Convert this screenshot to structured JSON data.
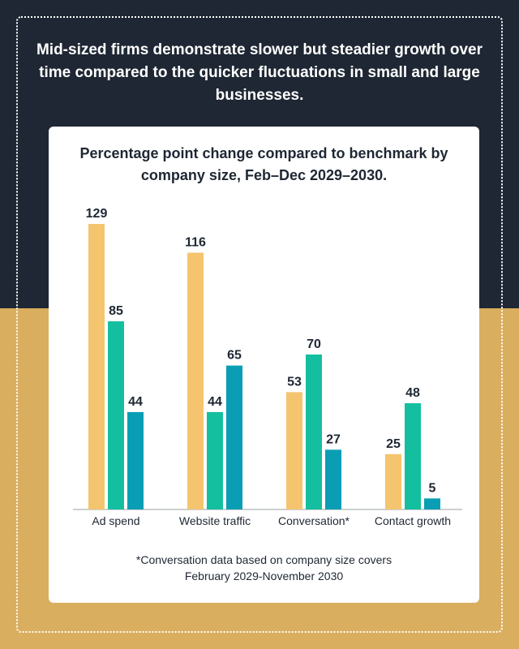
{
  "headline": "Mid-sized firms demonstrate slower but steadier growth over time compared to the quicker fluctuations in small and large businesses.",
  "footnote": {
    "line1": "*Conversation data based on company size covers",
    "line2": "February 2029-November 2030"
  },
  "colors": {
    "background_top": "#1e2733",
    "background_bottom": "#d9ae5f",
    "series": [
      "#f5c46e",
      "#14bfa0",
      "#0a9eb5"
    ],
    "text": "#1e2733"
  },
  "chart_data": {
    "type": "bar",
    "title": "Percentage point change compared to benchmark by company size, Feb–Dec 2029–2030.",
    "categories": [
      "Ad spend",
      "Website traffic",
      "Conversation*",
      "Contact growth"
    ],
    "series": [
      {
        "values": [
          129,
          116,
          53,
          25
        ]
      },
      {
        "values": [
          85,
          44,
          70,
          48
        ]
      },
      {
        "values": [
          44,
          65,
          27,
          5
        ]
      }
    ],
    "ylim": [
      0,
      129
    ],
    "grid": false,
    "legend": "none",
    "data_labels": true
  }
}
